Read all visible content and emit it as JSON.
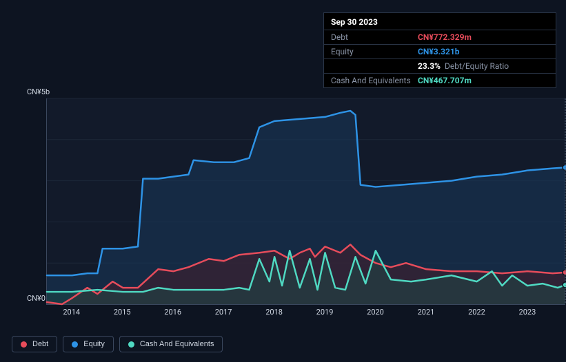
{
  "tooltip": {
    "date": "Sep 30 2023",
    "rows": [
      {
        "label": "Debt",
        "value": "CN¥772.329m",
        "color": "#e74c5b"
      },
      {
        "label": "Equity",
        "value": "CN¥3.321b",
        "color": "#2e93e6"
      },
      {
        "label": "",
        "value": "23.3%",
        "sub": "Debt/Equity Ratio",
        "color": "#ffffff"
      },
      {
        "label": "Cash And Equivalents",
        "value": "CN¥467.707m",
        "color": "#4fd9c2"
      }
    ]
  },
  "chart": {
    "type": "area-line",
    "background_color": "#121a2a",
    "grid_color": "#1c2738",
    "axis_color": "#3a475e",
    "tick_fontsize": 11,
    "tick_color": "#cfd6e1",
    "ylabel_top": "CN¥5b",
    "ylabel_bottom": "CN¥0",
    "ylim": [
      0,
      5
    ],
    "xlim": [
      2013.5,
      2023.75
    ],
    "xticks": [
      2014,
      2015,
      2016,
      2017,
      2018,
      2019,
      2020,
      2021,
      2022,
      2023
    ],
    "gridlines_y": [
      1,
      2,
      3,
      4,
      5
    ],
    "crosshair_x": 2023.75,
    "series": [
      {
        "name": "Equity",
        "color": "#2e93e6",
        "fill": "#17395a",
        "fill_opacity": 0.55,
        "line_width": 2.5,
        "marker_end": true,
        "data": [
          [
            2013.5,
            0.7
          ],
          [
            2014.0,
            0.7
          ],
          [
            2014.3,
            0.75
          ],
          [
            2014.5,
            0.75
          ],
          [
            2014.6,
            1.35
          ],
          [
            2015.0,
            1.35
          ],
          [
            2015.3,
            1.4
          ],
          [
            2015.4,
            3.05
          ],
          [
            2015.7,
            3.05
          ],
          [
            2016.0,
            3.1
          ],
          [
            2016.3,
            3.15
          ],
          [
            2016.4,
            3.5
          ],
          [
            2016.8,
            3.45
          ],
          [
            2017.2,
            3.45
          ],
          [
            2017.5,
            3.55
          ],
          [
            2017.7,
            4.3
          ],
          [
            2018.0,
            4.45
          ],
          [
            2018.5,
            4.5
          ],
          [
            2019.0,
            4.55
          ],
          [
            2019.3,
            4.65
          ],
          [
            2019.5,
            4.7
          ],
          [
            2019.6,
            4.6
          ],
          [
            2019.7,
            2.9
          ],
          [
            2020.0,
            2.85
          ],
          [
            2020.5,
            2.9
          ],
          [
            2021.0,
            2.95
          ],
          [
            2021.5,
            3.0
          ],
          [
            2022.0,
            3.1
          ],
          [
            2022.5,
            3.15
          ],
          [
            2023.0,
            3.25
          ],
          [
            2023.5,
            3.3
          ],
          [
            2023.75,
            3.321
          ]
        ]
      },
      {
        "name": "Debt",
        "color": "#e74c5b",
        "fill": "#4a1c28",
        "fill_opacity": 0.5,
        "line_width": 2.5,
        "marker_end": true,
        "data": [
          [
            2013.5,
            0.05
          ],
          [
            2013.8,
            0.0
          ],
          [
            2014.0,
            0.15
          ],
          [
            2014.3,
            0.4
          ],
          [
            2014.5,
            0.25
          ],
          [
            2014.8,
            0.55
          ],
          [
            2015.0,
            0.4
          ],
          [
            2015.3,
            0.4
          ],
          [
            2015.7,
            0.85
          ],
          [
            2016.0,
            0.8
          ],
          [
            2016.3,
            0.9
          ],
          [
            2016.7,
            1.1
          ],
          [
            2017.0,
            1.05
          ],
          [
            2017.3,
            1.2
          ],
          [
            2017.7,
            1.25
          ],
          [
            2018.0,
            1.3
          ],
          [
            2018.3,
            1.1
          ],
          [
            2018.5,
            1.25
          ],
          [
            2018.7,
            1.35
          ],
          [
            2018.8,
            1.15
          ],
          [
            2019.0,
            1.4
          ],
          [
            2019.3,
            1.25
          ],
          [
            2019.5,
            1.45
          ],
          [
            2019.7,
            1.2
          ],
          [
            2020.0,
            1.0
          ],
          [
            2020.3,
            0.9
          ],
          [
            2020.6,
            1.0
          ],
          [
            2021.0,
            0.85
          ],
          [
            2021.5,
            0.8
          ],
          [
            2022.0,
            0.8
          ],
          [
            2022.5,
            0.75
          ],
          [
            2023.0,
            0.8
          ],
          [
            2023.5,
            0.75
          ],
          [
            2023.75,
            0.772
          ]
        ]
      },
      {
        "name": "Cash And Equivalents",
        "color": "#4fd9c2",
        "fill": "#1e4a46",
        "fill_opacity": 0.5,
        "line_width": 2.5,
        "marker_end": true,
        "data": [
          [
            2013.5,
            0.3
          ],
          [
            2014.0,
            0.3
          ],
          [
            2014.5,
            0.35
          ],
          [
            2015.0,
            0.3
          ],
          [
            2015.4,
            0.3
          ],
          [
            2015.7,
            0.4
          ],
          [
            2016.0,
            0.35
          ],
          [
            2016.5,
            0.35
          ],
          [
            2017.0,
            0.35
          ],
          [
            2017.3,
            0.4
          ],
          [
            2017.5,
            0.35
          ],
          [
            2017.7,
            1.1
          ],
          [
            2017.9,
            0.55
          ],
          [
            2018.0,
            1.15
          ],
          [
            2018.15,
            0.45
          ],
          [
            2018.3,
            1.3
          ],
          [
            2018.5,
            0.4
          ],
          [
            2018.7,
            1.1
          ],
          [
            2018.85,
            0.35
          ],
          [
            2019.0,
            1.25
          ],
          [
            2019.2,
            0.4
          ],
          [
            2019.4,
            0.35
          ],
          [
            2019.6,
            1.15
          ],
          [
            2019.8,
            0.5
          ],
          [
            2020.0,
            1.3
          ],
          [
            2020.3,
            0.6
          ],
          [
            2020.7,
            0.55
          ],
          [
            2021.0,
            0.6
          ],
          [
            2021.5,
            0.7
          ],
          [
            2022.0,
            0.55
          ],
          [
            2022.3,
            0.8
          ],
          [
            2022.5,
            0.45
          ],
          [
            2022.7,
            0.7
          ],
          [
            2023.0,
            0.45
          ],
          [
            2023.3,
            0.5
          ],
          [
            2023.6,
            0.4
          ],
          [
            2023.75,
            0.468
          ]
        ]
      }
    ]
  },
  "legend": {
    "items": [
      {
        "label": "Debt",
        "color": "#e74c5b"
      },
      {
        "label": "Equity",
        "color": "#2e93e6"
      },
      {
        "label": "Cash And Equivalents",
        "color": "#4fd9c2"
      }
    ],
    "border_color": "#3a475e",
    "fontsize": 11
  }
}
